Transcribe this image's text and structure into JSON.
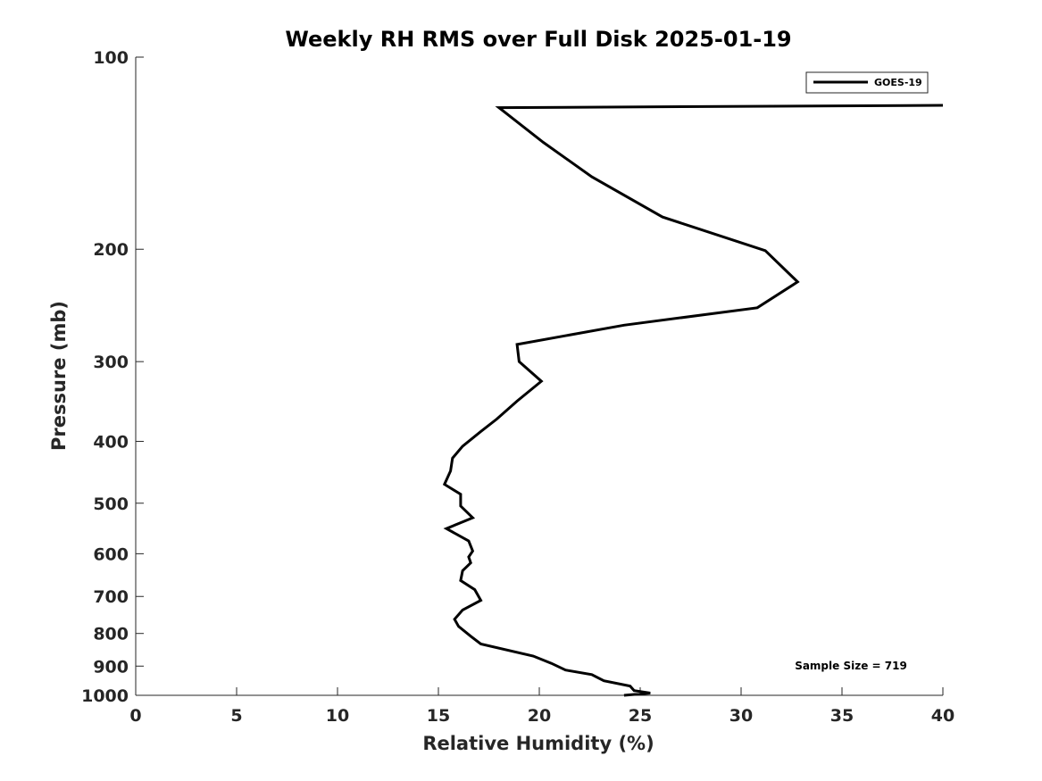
{
  "chart_data": {
    "type": "line",
    "title": "Weekly RH RMS over Full Disk 2025-01-19",
    "xlabel": "Relative Humidity (%)",
    "ylabel": "Pressure (mb)",
    "xlim": [
      0,
      40
    ],
    "ylim": [
      100,
      1000
    ],
    "y_scale": "log",
    "y_reversed": true,
    "x_ticks": [
      0,
      5,
      10,
      15,
      20,
      25,
      30,
      35,
      40
    ],
    "y_ticks": [
      100,
      200,
      300,
      400,
      500,
      600,
      700,
      800,
      900,
      1000
    ],
    "x_tick_labels": [
      "0",
      "5",
      "10",
      "15",
      "20",
      "25",
      "30",
      "35",
      "40"
    ],
    "y_tick_labels": [
      "100",
      "200",
      "300",
      "400",
      "500",
      "600",
      "700",
      "800",
      "900",
      "1000"
    ],
    "legend": {
      "location": "top-right",
      "entries": [
        "GOES-19"
      ]
    },
    "annotation": "Sample Size = 719",
    "series": [
      {
        "name": "GOES-19",
        "color": "#000000",
        "points": [
          [
            40.0,
            119
          ],
          [
            18.0,
            120
          ],
          [
            20.2,
            136
          ],
          [
            22.6,
            154
          ],
          [
            26.1,
            178
          ],
          [
            31.2,
            201
          ],
          [
            32.8,
            225
          ],
          [
            30.8,
            247
          ],
          [
            24.2,
            263
          ],
          [
            18.9,
            282
          ],
          [
            19.0,
            300
          ],
          [
            20.1,
            322
          ],
          [
            18.9,
            346
          ],
          [
            17.9,
            369
          ],
          [
            17.1,
            386
          ],
          [
            16.2,
            407
          ],
          [
            15.7,
            425
          ],
          [
            15.6,
            445
          ],
          [
            15.3,
            467
          ],
          [
            16.1,
            484
          ],
          [
            16.1,
            505
          ],
          [
            16.7,
            527
          ],
          [
            15.4,
            548
          ],
          [
            16.5,
            573
          ],
          [
            16.7,
            594
          ],
          [
            16.5,
            607
          ],
          [
            16.6,
            620
          ],
          [
            16.2,
            638
          ],
          [
            16.1,
            661
          ],
          [
            16.8,
            683
          ],
          [
            17.1,
            710
          ],
          [
            16.2,
            735
          ],
          [
            15.8,
            760
          ],
          [
            16.0,
            780
          ],
          [
            16.6,
            808
          ],
          [
            17.1,
            831
          ],
          [
            19.7,
            868
          ],
          [
            20.6,
            891
          ],
          [
            21.3,
            913
          ],
          [
            22.6,
            928
          ],
          [
            23.2,
            949
          ],
          [
            24.5,
            967
          ],
          [
            24.7,
            983
          ],
          [
            25.5,
            992
          ],
          [
            24.2,
            1000
          ]
        ]
      }
    ]
  }
}
